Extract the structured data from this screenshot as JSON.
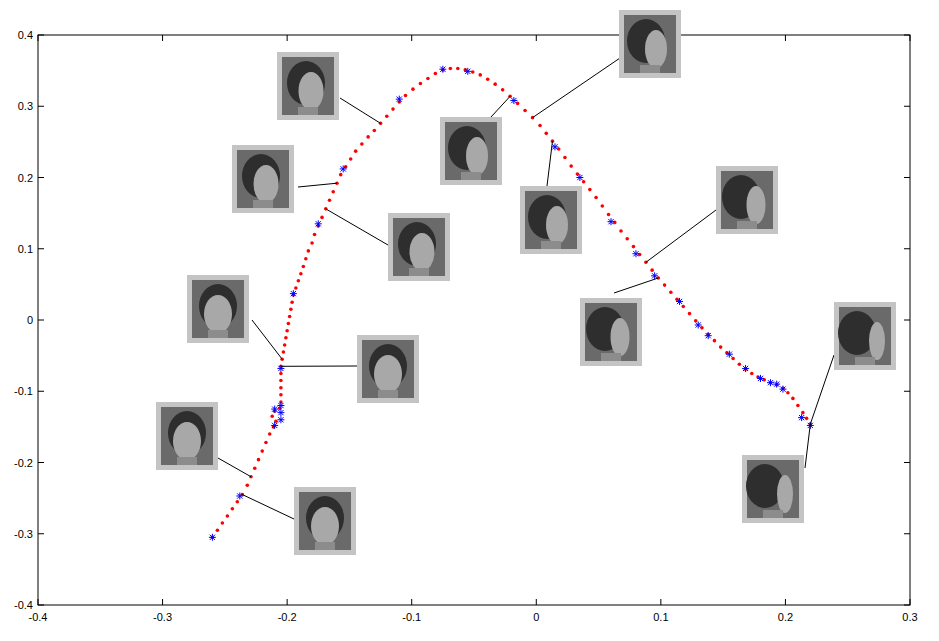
{
  "chart_data": {
    "type": "scatter",
    "xlim": [
      -0.4,
      0.3
    ],
    "ylim": [
      -0.4,
      0.4
    ],
    "xticks": [
      -0.4,
      -0.3,
      -0.2,
      -0.1,
      0,
      0.1,
      0.2,
      0.3
    ],
    "yticks": [
      -0.4,
      -0.3,
      -0.2,
      -0.1,
      0,
      0.1,
      0.2,
      0.3,
      0.4
    ],
    "grid": false,
    "series": [
      {
        "color": "#ff0000",
        "marker": "dot",
        "x": [
          -0.26,
          -0.256,
          -0.252,
          -0.248,
          -0.244,
          -0.24,
          -0.236,
          -0.232,
          -0.229,
          -0.226,
          -0.223,
          -0.22,
          -0.217,
          -0.214,
          -0.211,
          -0.209,
          -0.212,
          -0.21,
          -0.206,
          -0.205,
          -0.205,
          -0.205,
          -0.205,
          -0.205,
          -0.205,
          -0.204,
          -0.203,
          -0.202,
          -0.201,
          -0.2,
          -0.199,
          -0.198,
          -0.197,
          -0.196,
          -0.195,
          -0.193,
          -0.191,
          -0.189,
          -0.187,
          -0.185,
          -0.183,
          -0.18,
          -0.178,
          -0.175,
          -0.172,
          -0.169,
          -0.166,
          -0.163,
          -0.16,
          -0.157,
          -0.153,
          -0.149,
          -0.145,
          -0.14,
          -0.135,
          -0.13,
          -0.125,
          -0.12,
          -0.115,
          -0.11,
          -0.105,
          -0.099,
          -0.093,
          -0.087,
          -0.081,
          -0.075,
          -0.069,
          -0.063,
          -0.057,
          -0.051,
          -0.045,
          -0.039,
          -0.033,
          -0.027,
          -0.021,
          -0.015,
          -0.009,
          -0.003,
          0.003,
          0.008,
          0.013,
          0.018,
          0.023,
          0.028,
          0.033,
          0.038,
          0.043,
          0.048,
          0.053,
          0.058,
          0.063,
          0.068,
          0.073,
          0.078,
          0.083,
          0.088,
          0.093,
          0.098,
          0.103,
          0.108,
          0.113,
          0.118,
          0.123,
          0.128,
          0.133,
          0.138,
          0.143,
          0.148,
          0.153,
          0.158,
          0.163,
          0.168,
          0.173,
          0.178,
          0.183,
          0.188,
          0.193,
          0.198,
          0.202,
          0.206,
          0.21,
          0.214,
          0.217,
          0.22
        ],
        "values": [
          -0.305,
          -0.295,
          -0.285,
          -0.275,
          -0.265,
          -0.255,
          -0.245,
          -0.232,
          -0.22,
          -0.208,
          -0.196,
          -0.184,
          -0.172,
          -0.16,
          -0.15,
          -0.142,
          -0.135,
          -0.128,
          -0.124,
          -0.115,
          -0.105,
          -0.095,
          -0.085,
          -0.075,
          -0.065,
          -0.055,
          -0.045,
          -0.035,
          -0.025,
          -0.015,
          -0.005,
          0.005,
          0.015,
          0.025,
          0.035,
          0.045,
          0.055,
          0.065,
          0.075,
          0.086,
          0.097,
          0.108,
          0.12,
          0.132,
          0.144,
          0.156,
          0.168,
          0.18,
          0.192,
          0.204,
          0.215,
          0.226,
          0.237,
          0.247,
          0.257,
          0.266,
          0.276,
          0.286,
          0.296,
          0.306,
          0.315,
          0.324,
          0.332,
          0.339,
          0.346,
          0.351,
          0.353,
          0.353,
          0.351,
          0.348,
          0.344,
          0.338,
          0.331,
          0.323,
          0.314,
          0.304,
          0.294,
          0.284,
          0.273,
          0.262,
          0.251,
          0.24,
          0.228,
          0.216,
          0.205,
          0.194,
          0.183,
          0.172,
          0.16,
          0.148,
          0.137,
          0.125,
          0.114,
          0.103,
          0.092,
          0.081,
          0.07,
          0.059,
          0.049,
          0.039,
          0.029,
          0.019,
          0.009,
          -0.001,
          -0.011,
          -0.02,
          -0.029,
          -0.038,
          -0.046,
          -0.054,
          -0.062,
          -0.069,
          -0.075,
          -0.08,
          -0.084,
          -0.088,
          -0.091,
          -0.096,
          -0.102,
          -0.11,
          -0.12,
          -0.13,
          -0.138,
          -0.146
        ]
      },
      {
        "color": "#0000ff",
        "marker": "star",
        "x": [
          -0.26,
          -0.238,
          -0.21,
          -0.205,
          -0.21,
          -0.205,
          -0.205,
          -0.205,
          -0.195,
          -0.175,
          -0.155,
          -0.11,
          -0.075,
          -0.055,
          -0.018,
          0.015,
          0.035,
          0.06,
          0.08,
          0.095,
          0.115,
          0.13,
          0.138,
          0.155,
          0.168,
          0.18,
          0.188,
          0.193,
          0.198,
          0.213,
          0.22
        ],
        "values": [
          -0.305,
          -0.247,
          -0.148,
          -0.14,
          -0.125,
          -0.13,
          -0.12,
          -0.068,
          0.037,
          0.135,
          0.212,
          0.31,
          0.352,
          0.349,
          0.308,
          0.243,
          0.2,
          0.138,
          0.093,
          0.062,
          0.026,
          -0.007,
          -0.022,
          -0.048,
          -0.068,
          -0.082,
          -0.088,
          -0.09,
          -0.097,
          -0.137,
          -0.148
        ]
      }
    ]
  }
}
